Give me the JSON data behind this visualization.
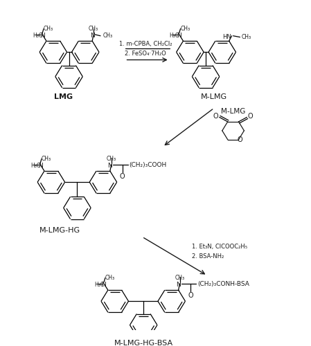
{
  "bg_color": "#ffffff",
  "line_color": "#1a1a1a",
  "text_color": "#1a1a1a",
  "fig_width": 4.49,
  "fig_height": 5.0,
  "dpi": 100,
  "lmg_label": "LMG",
  "mlmg_label": "M-LMG",
  "mlmghg_label": "M-LMG-HG",
  "mlmghgbsa_label": "M-LMG-HG-BSA",
  "step1_line1": "1. m-CPBA, CH₂Cl₂",
  "step1_line2": "2. FeSO₄·7H₂O",
  "step2_line1": "1. Et₃N, ClCOOC₂H₅",
  "step2_line2": "2. BSA-NH₂"
}
